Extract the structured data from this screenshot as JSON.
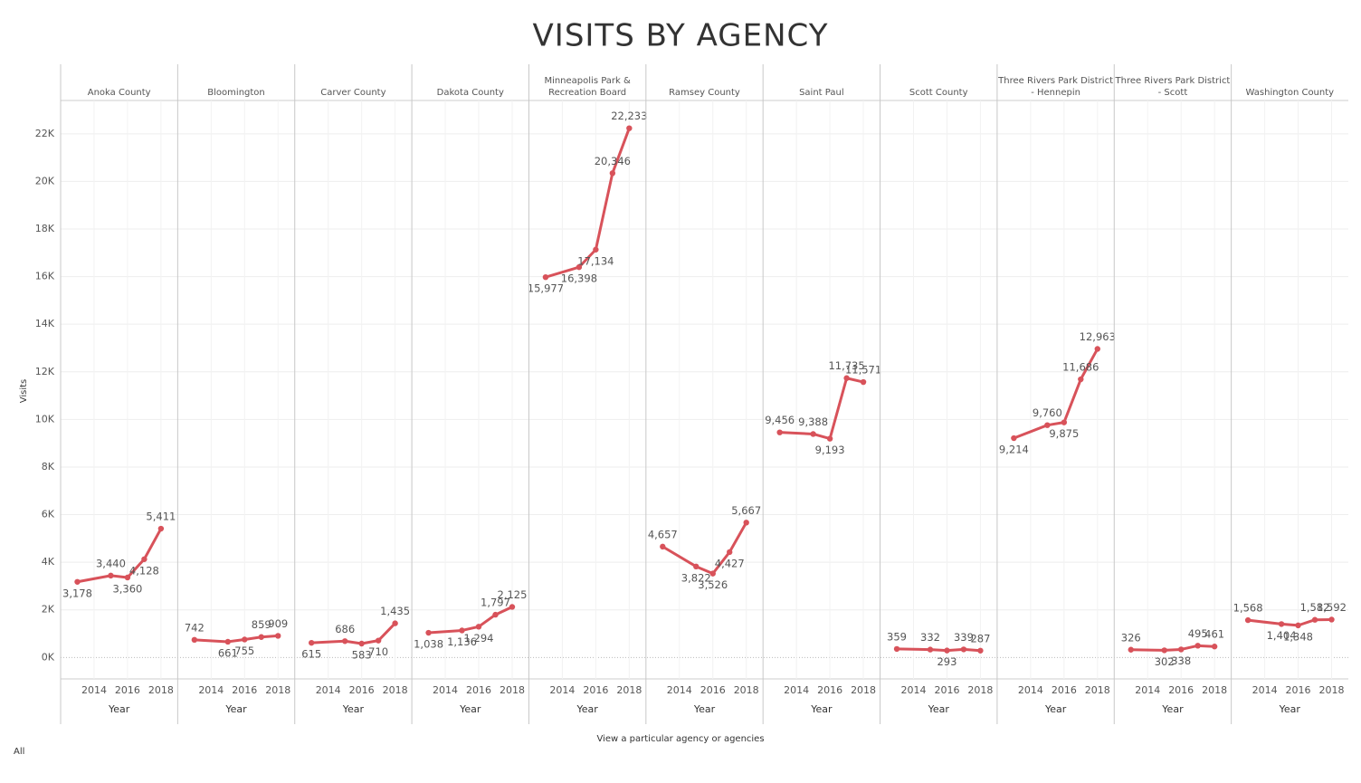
{
  "chart_data": {
    "type": "line",
    "title": "VISITS BY AGENCY",
    "y_label": "Visits",
    "x_label": "Year",
    "color": "#d8525a",
    "x": [
      2013,
      2015,
      2016,
      2017,
      2018
    ],
    "xlim": [
      2012,
      2019
    ],
    "xticks": [
      2014,
      2016,
      2018
    ],
    "ylim": [
      -900,
      23400
    ],
    "yticks": [
      {
        "value": 0,
        "label": "0K"
      },
      {
        "value": 2000,
        "label": "2K"
      },
      {
        "value": 4000,
        "label": "4K"
      },
      {
        "value": 6000,
        "label": "6K"
      },
      {
        "value": 8000,
        "label": "8K"
      },
      {
        "value": 10000,
        "label": "10K"
      },
      {
        "value": 12000,
        "label": "12K"
      },
      {
        "value": 14000,
        "label": "14K"
      },
      {
        "value": 16000,
        "label": "16K"
      },
      {
        "value": 18000,
        "label": "18K"
      },
      {
        "value": 20000,
        "label": "20K"
      },
      {
        "value": 22000,
        "label": "22K"
      }
    ],
    "grid": true,
    "series": [
      {
        "name": "Anoka County",
        "values": [
          3178,
          3440,
          3360,
          4128,
          5411
        ],
        "value_labels": [
          "3,178",
          "3,440",
          "3,360",
          "4,128",
          "5,411"
        ]
      },
      {
        "name": "Bloomington",
        "values": [
          742,
          661,
          755,
          859,
          909
        ],
        "value_labels": [
          "742",
          "661",
          "755",
          "859",
          "909"
        ]
      },
      {
        "name": "Carver County",
        "values": [
          615,
          686,
          583,
          710,
          1435
        ],
        "value_labels": [
          "615",
          "686",
          "583",
          "710",
          "1,435"
        ]
      },
      {
        "name": "Dakota County",
        "values": [
          1038,
          1136,
          1294,
          1797,
          2125
        ],
        "value_labels": [
          "1,038",
          "1,136",
          "1,294",
          "1,797",
          "2,125"
        ]
      },
      {
        "name": "Minneapolis Park & Recreation Board",
        "values": [
          15977,
          16398,
          17134,
          20346,
          22233
        ],
        "value_labels": [
          "15,977",
          "16,398",
          "17,134",
          "20,346",
          "22,233"
        ]
      },
      {
        "name": "Ramsey County",
        "values": [
          4657,
          3822,
          3526,
          4427,
          5667
        ],
        "value_labels": [
          "4,657",
          "3,822",
          "3,526",
          "4,427",
          "5,667"
        ]
      },
      {
        "name": "Saint Paul",
        "values": [
          9456,
          9388,
          9193,
          11735,
          11571
        ],
        "value_labels": [
          "9,456",
          "9,388",
          "9,193",
          "11,735",
          "11,571"
        ]
      },
      {
        "name": "Scott County",
        "values": [
          359,
          332,
          293,
          339,
          287
        ],
        "value_labels": [
          "359",
          "332",
          "293",
          "339",
          "287"
        ]
      },
      {
        "name": "Three Rivers Park District - Hennepin",
        "values": [
          9214,
          9760,
          9875,
          11686,
          12963
        ],
        "value_labels": [
          "9,214",
          "9,760",
          "9,875",
          "11,686",
          "12,963"
        ]
      },
      {
        "name": "Three Rivers Park District - Scott",
        "values": [
          326,
          302,
          338,
          495,
          461
        ],
        "value_labels": [
          "326",
          "302",
          "338",
          "495",
          "461"
        ]
      },
      {
        "name": "Washington County",
        "values": [
          1568,
          1404,
          1348,
          1582,
          1592
        ],
        "value_labels": [
          "1,568",
          "1,404",
          "1,348",
          "1,582",
          "1,592"
        ]
      }
    ]
  },
  "filter": {
    "label": "View a particular agency or agencies",
    "value": "All"
  }
}
